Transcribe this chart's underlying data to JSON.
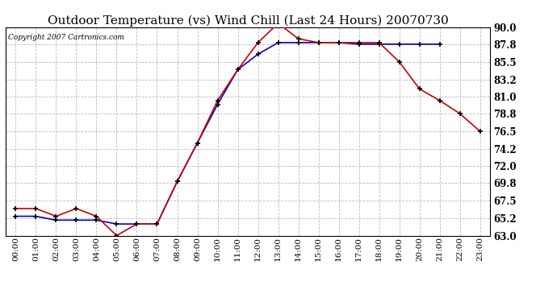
{
  "title": "Outdoor Temperature (vs) Wind Chill (Last 24 Hours) 20070730",
  "copyright": "Copyright 2007 Cartronics.com",
  "hours": [
    "00:00",
    "01:00",
    "02:00",
    "03:00",
    "04:00",
    "05:00",
    "06:00",
    "07:00",
    "08:00",
    "09:00",
    "10:00",
    "11:00",
    "12:00",
    "13:00",
    "14:00",
    "15:00",
    "16:00",
    "17:00",
    "18:00",
    "19:00",
    "20:00",
    "21:00",
    "22:00",
    "23:00"
  ],
  "outdoor_temp": [
    66.5,
    66.5,
    65.5,
    66.5,
    65.5,
    63.0,
    64.5,
    64.5,
    70.0,
    75.0,
    80.5,
    84.5,
    88.0,
    90.5,
    88.5,
    88.0,
    88.0,
    88.0,
    88.0,
    85.5,
    82.0,
    80.5,
    78.8,
    76.5
  ],
  "wind_chill": [
    65.5,
    65.5,
    65.0,
    65.0,
    65.0,
    64.5,
    64.5,
    64.5,
    70.0,
    75.0,
    80.0,
    84.5,
    86.5,
    88.0,
    88.0,
    88.0,
    88.0,
    87.8,
    87.8,
    87.8,
    87.8,
    87.8,
    null,
    null
  ],
  "temp_color": "#cc0000",
  "chill_color": "#0000cc",
  "ylim_min": 63.0,
  "ylim_max": 90.0,
  "yticks": [
    63.0,
    65.2,
    67.5,
    69.8,
    72.0,
    74.2,
    76.5,
    78.8,
    81.0,
    83.2,
    85.5,
    87.8,
    90.0
  ],
  "background_color": "#ffffff",
  "plot_bg_color": "#ffffff",
  "grid_color": "#bbbbbb",
  "title_fontsize": 11,
  "copyright_fontsize": 6.5,
  "tick_fontsize": 7.5,
  "ytick_fontsize": 8.5
}
